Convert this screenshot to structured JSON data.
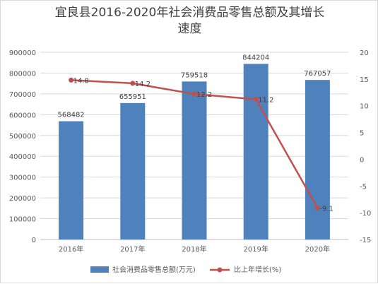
{
  "chart_data": {
    "type": "bar",
    "title_line1": "宜良县2016-2020年社会消费品零售总额及其增长",
    "title_line2": "速度",
    "categories": [
      "2016年",
      "2017年",
      "2018年",
      "2019年",
      "2020年"
    ],
    "series": [
      {
        "name": "社会消费品零售总额(万元)",
        "type": "bar",
        "axis": "left",
        "color": "#4f81bd",
        "values": [
          568482,
          655951,
          759518,
          844204,
          767057
        ],
        "labels": [
          "568482",
          "655951",
          "759518",
          "844204",
          "767057"
        ]
      },
      {
        "name": "比上年增长(%)",
        "type": "line",
        "axis": "right",
        "color": "#c0504d",
        "values": [
          14.8,
          14.2,
          12.2,
          11.2,
          -9.1
        ],
        "labels": [
          "14.8",
          "14.2",
          "12.2",
          "11.2",
          "-9.1"
        ]
      }
    ],
    "y_left": {
      "min": 0,
      "max": 900000,
      "ticks": [
        "0",
        "100000",
        "200000",
        "300000",
        "400000",
        "500000",
        "600000",
        "700000",
        "800000",
        "900000"
      ]
    },
    "y_right": {
      "min": -15,
      "max": 20,
      "ticks": [
        "-15",
        "-10",
        "-5",
        "0",
        "5",
        "10",
        "15",
        "20"
      ]
    },
    "grid": true,
    "legend_position": "bottom"
  }
}
